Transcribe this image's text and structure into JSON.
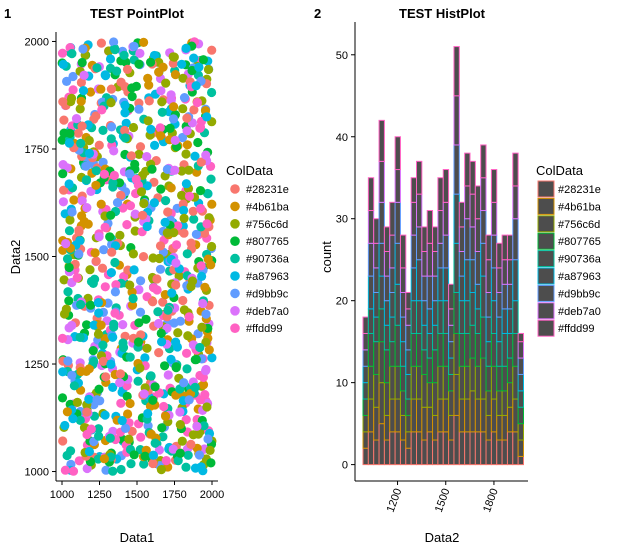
{
  "panel_tags": [
    "1",
    "2"
  ],
  "palette": [
    "#F8766D",
    "#D39200",
    "#93AA00",
    "#00BA38",
    "#00C19F",
    "#00B9E3",
    "#619CFF",
    "#DB72FB",
    "#FF61C3"
  ],
  "chart_data": [
    {
      "type": "scatter",
      "title": "TEST PointPlot",
      "xlabel": "Data1",
      "ylabel": "Data2",
      "xlim": [
        960,
        2040
      ],
      "ylim": [
        978,
        2022
      ],
      "xticks": [
        1000,
        1250,
        1500,
        1750,
        2000
      ],
      "yticks": [
        1000,
        1250,
        1500,
        1750,
        2000
      ],
      "grid": false,
      "legend": {
        "title": "ColData",
        "position": "right",
        "entries": [
          "#28231e",
          "#4b61ba",
          "#756c6d",
          "#807765",
          "#90736a",
          "#a87963",
          "#d9bb9c",
          "#deb7a0",
          "#ffdd99"
        ]
      },
      "x_range": [
        1000,
        2000
      ],
      "y_range": [
        1000,
        2000
      ],
      "point_count": 1000
    },
    {
      "type": "bar",
      "title": "TEST HistPlot",
      "xlabel": "Data2",
      "ylabel": "count",
      "bin_start": 985,
      "bin_width": 33.3,
      "counts": [
        18,
        35,
        30,
        42,
        29,
        32,
        40,
        28,
        21,
        35,
        37,
        29,
        31,
        29,
        35,
        36,
        22,
        51,
        32,
        38,
        37,
        34,
        39,
        28,
        36,
        27,
        28,
        28,
        38,
        16
      ],
      "xticks": [
        1200,
        1500,
        1800
      ],
      "yticks": [
        0,
        10,
        20,
        30,
        40,
        50
      ],
      "ylim": [
        -2,
        54
      ],
      "grid": false,
      "stacked_by": "ColData",
      "legend": {
        "title": "ColData",
        "position": "right",
        "entries": [
          "#28231e",
          "#4b61ba",
          "#756c6d",
          "#807765",
          "#90736a",
          "#a87963",
          "#d9bb9c",
          "#deb7a0",
          "#ffdd99"
        ]
      }
    }
  ]
}
